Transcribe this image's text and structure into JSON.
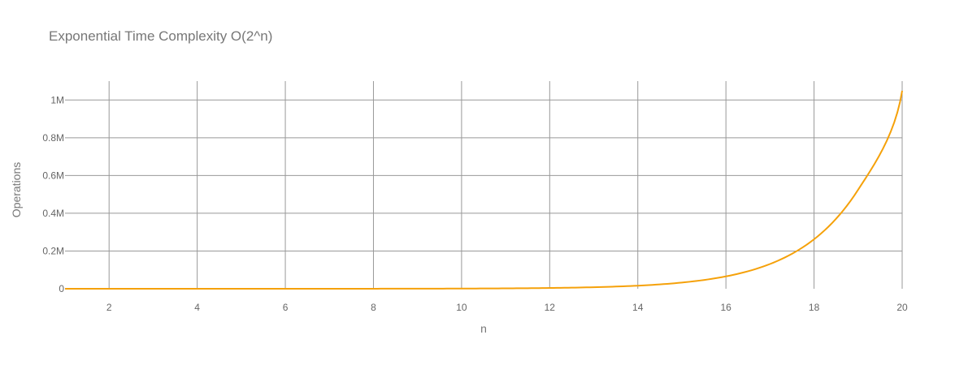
{
  "chart_data": {
    "type": "line",
    "title": "Exponential Time Complexity O(2^n)",
    "xlabel": "n",
    "ylabel": "Operations",
    "xlim": [
      1,
      20
    ],
    "ylim": [
      0,
      1100000
    ],
    "x_ticks": [
      2,
      4,
      6,
      8,
      10,
      12,
      14,
      16,
      18,
      20
    ],
    "x_tick_labels": [
      "2",
      "4",
      "6",
      "8",
      "10",
      "12",
      "14",
      "16",
      "18",
      "20"
    ],
    "y_ticks": [
      0,
      200000,
      400000,
      600000,
      800000,
      1000000
    ],
    "y_tick_labels": [
      "0",
      "0.2M",
      "0.4M",
      "0.6M",
      "0.8M",
      "1M"
    ],
    "grid": true,
    "legend": "none",
    "series": [
      {
        "color": "#f5a10a",
        "x": [
          1,
          2,
          3,
          4,
          5,
          6,
          7,
          8,
          9,
          10,
          11,
          12,
          13,
          14,
          15,
          16,
          17,
          18,
          19,
          20
        ],
        "values": [
          2,
          4,
          8,
          16,
          32,
          64,
          128,
          256,
          512,
          1024,
          2048,
          4096,
          8192,
          16384,
          32768,
          65536,
          131072,
          262144,
          524288,
          1048576
        ]
      }
    ]
  }
}
